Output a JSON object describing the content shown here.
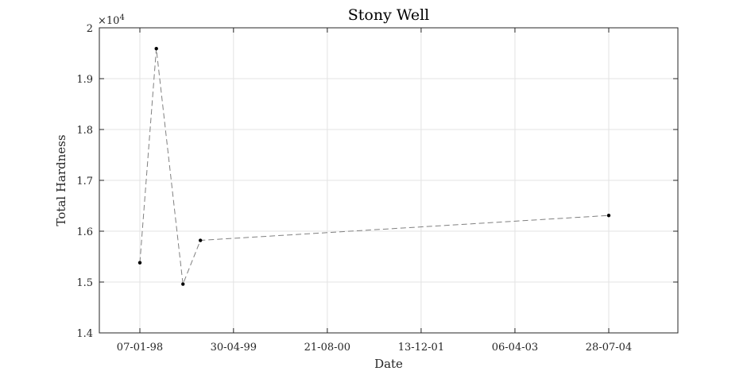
{
  "chart_data": {
    "type": "line",
    "title": "Stony Well",
    "xlabel": "Date",
    "ylabel": "Total Hardness",
    "y_exponent_label": "×10",
    "y_exponent": "4",
    "xlim": [
      "1997-06-14",
      "2005-07-16"
    ],
    "ylim": [
      14000,
      20000
    ],
    "x_ticks": [
      "1998-01-07",
      "1999-04-30",
      "2000-08-21",
      "2001-12-13",
      "2003-04-06",
      "2004-07-28"
    ],
    "x_tick_labels": [
      "07-01-98",
      "30-04-99",
      "21-08-00",
      "13-12-01",
      "06-04-03",
      "28-07-04"
    ],
    "y_ticks": [
      14000,
      15000,
      16000,
      17000,
      18000,
      19000,
      20000
    ],
    "y_tick_labels": [
      "1.4",
      "1.5",
      "1.6",
      "1.7",
      "1.8",
      "1.9",
      "2"
    ],
    "grid": true,
    "line_color": "#808080",
    "line_style": "dashed",
    "marker_color": "#000000",
    "series": [
      {
        "x": [
          "1998-01-07",
          "1998-04-01",
          "1998-08-15",
          "1998-11-12",
          "2004-07-28"
        ],
        "y": [
          15380,
          19590,
          14960,
          15820,
          16310
        ]
      }
    ]
  }
}
